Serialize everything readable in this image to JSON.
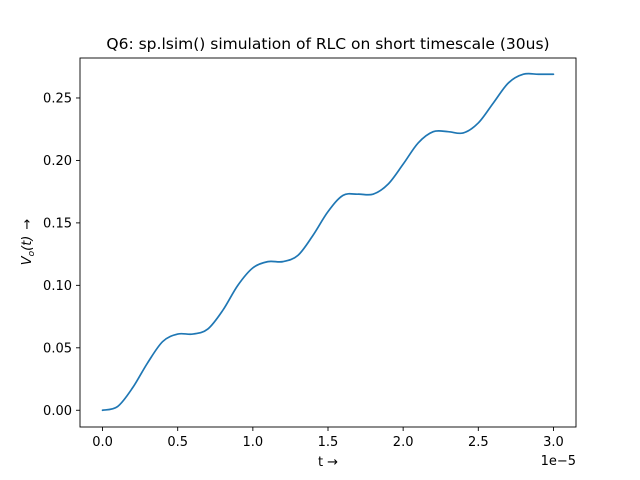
{
  "chart_data": {
    "type": "line",
    "title": "Q6: sp.lsim() simulation of RLC on short timescale (30us)",
    "xlabel": "t →",
    "ylabel_main": "V",
    "ylabel_sub": "o",
    "ylabel_arg": "(t)",
    "ylabel_arrow": "→",
    "x_offset_text": "1e−5",
    "x_ticks": [
      0.0,
      0.5,
      1.0,
      1.5,
      2.0,
      2.5,
      3.0
    ],
    "x_tick_labels": [
      "0.0",
      "0.5",
      "1.0",
      "1.5",
      "2.0",
      "2.5",
      "3.0"
    ],
    "y_ticks": [
      0.0,
      0.05,
      0.1,
      0.15,
      0.2,
      0.25
    ],
    "y_tick_labels": [
      "0.00",
      "0.05",
      "0.10",
      "0.15",
      "0.20",
      "0.25"
    ],
    "xlim": [
      -0.15,
      3.15
    ],
    "ylim": [
      -0.0134,
      0.282
    ],
    "grid": false,
    "series": [
      {
        "color": "#1f77b4",
        "x": [
          0.0,
          0.1,
          0.2,
          0.3,
          0.4,
          0.5,
          0.6,
          0.7,
          0.8,
          0.9,
          1.0,
          1.1,
          1.2,
          1.3,
          1.4,
          1.5,
          1.6,
          1.7,
          1.8,
          1.9,
          2.0,
          2.1,
          2.2,
          2.3,
          2.4,
          2.5,
          2.6,
          2.7,
          2.8,
          2.9,
          3.0
        ],
        "y": [
          0.0,
          0.003,
          0.018,
          0.038,
          0.055,
          0.061,
          0.061,
          0.065,
          0.08,
          0.1,
          0.114,
          0.119,
          0.119,
          0.124,
          0.14,
          0.159,
          0.172,
          0.173,
          0.173,
          0.181,
          0.197,
          0.214,
          0.223,
          0.223,
          0.222,
          0.23,
          0.246,
          0.262,
          0.269,
          0.269,
          0.269
        ]
      }
    ]
  }
}
